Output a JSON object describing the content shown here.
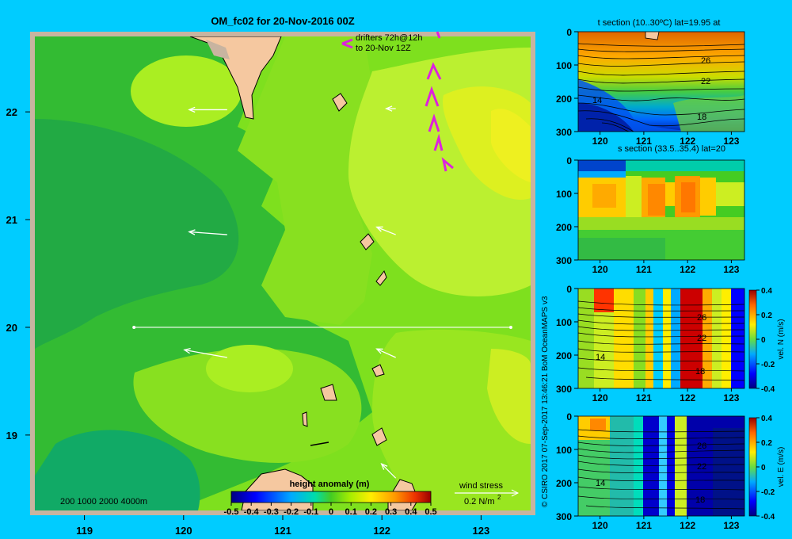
{
  "colors": {
    "background": "#00ccff",
    "frame": "#c8b4a0",
    "land": "#f5c8a0",
    "drifter": "#dd22dd",
    "arrow": "#ffffff"
  },
  "main_map": {
    "title": "OM_fc02 for 20-Nov-2016 00Z",
    "drifter_label_1": "drifters 72h@12h",
    "drifter_label_2": "to 20-Nov 12Z",
    "depth_scale_label": "200  1000  2000  4000m",
    "wind_label": "wind stress",
    "wind_scale_label": "0.2 N/m",
    "wind_scale_exp": "2",
    "credit": "© CSIRO 2017   07-Sep-2017 13:46:21 BoM OceanMAPS v3",
    "x_ticks": [
      "119",
      "120",
      "121",
      "122",
      "123"
    ],
    "y_ticks": [
      "22",
      "21",
      "20",
      "19"
    ]
  },
  "chart_data": [
    {
      "type": "heatmap",
      "title": "OM_fc02 for 20-Nov-2016 00Z",
      "colorbar_label": "height anomaly (m)",
      "xlim": [
        118.5,
        123.5
      ],
      "ylim": [
        18.3,
        22.7
      ],
      "x_ticks": [
        119,
        120,
        121,
        122,
        123
      ],
      "y_ticks": [
        19,
        20,
        21,
        22
      ],
      "colorbar_ticks": [
        "-0.5",
        "-0.4",
        "-0.3",
        "-0.2",
        "-0.1",
        "0",
        "0.1",
        "0.2",
        "0.3",
        "0.4",
        "0.5"
      ],
      "colorbar_range": [
        -0.5,
        0.5
      ],
      "section_line": {
        "lat": 20,
        "lon_from": 119.5,
        "lon_to": 123.3
      },
      "surface_current_arrows": [
        {
          "lon": 120.2,
          "lat": 22.02,
          "u": -0.4,
          "v": 0.0
        },
        {
          "lon": 120.2,
          "lat": 20.86,
          "u": -0.4,
          "v": 0.03
        },
        {
          "lon": 120.2,
          "lat": 19.72,
          "u": -0.45,
          "v": 0.08
        },
        {
          "lon": 121.9,
          "lat": 22.03,
          "u": -0.1,
          "v": 0.0
        },
        {
          "lon": 121.9,
          "lat": 20.86,
          "u": -0.2,
          "v": 0.08
        },
        {
          "lon": 121.9,
          "lat": 19.72,
          "u": -0.2,
          "v": 0.09
        },
        {
          "lon": 121.9,
          "lat": 18.6,
          "u": -0.15,
          "v": 0.15
        }
      ]
    },
    {
      "type": "heatmap",
      "title": "t section (10..30ºC) lat=19.95 at",
      "xlim": [
        119.5,
        123.3
      ],
      "ylim": [
        300,
        0
      ],
      "x_ticks": [
        120,
        121,
        122,
        123
      ],
      "y_ticks": [
        0,
        100,
        200,
        300
      ],
      "contour_labels": [
        "26",
        "22",
        "18",
        "14"
      ]
    },
    {
      "type": "heatmap",
      "title": "s section (33.5..35.4) lat=20",
      "xlim": [
        119.5,
        123.3
      ],
      "ylim": [
        300,
        0
      ],
      "x_ticks": [
        120,
        121,
        122,
        123
      ],
      "y_ticks": [
        0,
        100,
        200,
        300
      ]
    },
    {
      "type": "heatmap",
      "title": "",
      "colorbar_label": "vel. N (m/s)",
      "colorbar_range": [
        -0.4,
        0.4
      ],
      "colorbar_ticks": [
        "0.4",
        "0.2",
        "0",
        "-0.2",
        "-0.4"
      ],
      "xlim": [
        119.5,
        123.3
      ],
      "ylim": [
        300,
        0
      ],
      "x_ticks": [
        120,
        121,
        122,
        123
      ],
      "y_ticks": [
        0,
        100,
        200,
        300
      ],
      "contour_labels": [
        "26",
        "22",
        "18",
        "14"
      ]
    },
    {
      "type": "heatmap",
      "title": "",
      "colorbar_label": "vel. E (m/s)",
      "colorbar_range": [
        -0.4,
        0.4
      ],
      "colorbar_ticks": [
        "0.4",
        "0.2",
        "0",
        "-0.2",
        "-0.4"
      ],
      "xlim": [
        119.5,
        123.3
      ],
      "ylim": [
        300,
        0
      ],
      "x_ticks": [
        120,
        121,
        122,
        123
      ],
      "y_ticks": [
        0,
        100,
        200,
        300
      ],
      "contour_labels": [
        "26",
        "22",
        "18",
        "14"
      ]
    }
  ]
}
